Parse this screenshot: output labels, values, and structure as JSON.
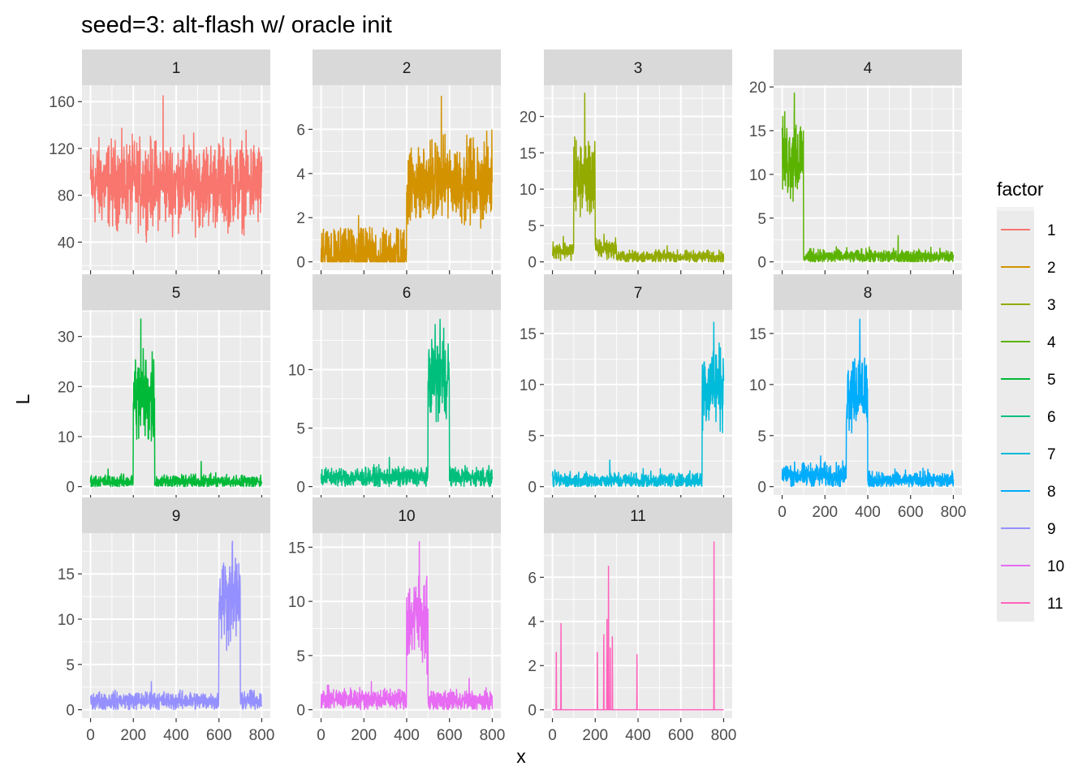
{
  "chart_data": {
    "type": "line",
    "title": "seed=3: alt-flash w/ oracle init",
    "xlabel": "x",
    "ylabel": "L",
    "grid": true,
    "facet_layout": "4 columns x 3 rows, free y scales, shared x scale",
    "legend": {
      "title": "factor",
      "position": "right",
      "labels": [
        "1",
        "2",
        "3",
        "4",
        "5",
        "6",
        "7",
        "8",
        "9",
        "10",
        "11"
      ]
    },
    "x_ticks": [
      0,
      200,
      400,
      600,
      800
    ],
    "xlim": [
      -40,
      840
    ],
    "panels": [
      {
        "strip": "1",
        "color": "#F8766D",
        "ylim": [
          16,
          174
        ],
        "y_ticks": [
          40,
          80,
          120,
          160
        ],
        "segments": [
          {
            "x0": 0,
            "x1": 800,
            "base": 90,
            "noise": 22,
            "max": 165
          }
        ]
      },
      {
        "strip": "2",
        "color": "#D39200",
        "ylim": [
          -0.38,
          8.0
        ],
        "y_ticks": [
          0,
          2,
          4,
          6
        ],
        "segments": [
          {
            "x0": 0,
            "x1": 400,
            "base": 0.3,
            "noise": 0.7,
            "spiky": true,
            "max": 2.1
          },
          {
            "x0": 400,
            "x1": 800,
            "base": 3.6,
            "noise": 1.1,
            "max": 7.5
          }
        ]
      },
      {
        "strip": "3",
        "color": "#93AA00",
        "ylim": [
          -1.15,
          24.3
        ],
        "y_ticks": [
          0,
          5,
          10,
          15,
          20
        ],
        "segments": [
          {
            "x0": 0,
            "x1": 100,
            "base": 1.6,
            "noise": 0.7,
            "max": 3.5
          },
          {
            "x0": 100,
            "x1": 200,
            "base": 11.5,
            "noise": 3.3,
            "max": 23.2
          },
          {
            "x0": 200,
            "x1": 300,
            "base": 1.8,
            "noise": 0.8,
            "max": 3.8
          },
          {
            "x0": 300,
            "x1": 800,
            "base": 0.7,
            "noise": 0.5,
            "max": 2.2
          }
        ]
      },
      {
        "strip": "4",
        "color": "#5BB300",
        "ylim": [
          -0.96,
          20.2
        ],
        "y_ticks": [
          0,
          5,
          10,
          15,
          20
        ],
        "segments": [
          {
            "x0": 0,
            "x1": 100,
            "base": 12,
            "noise": 3,
            "max": 19.3
          },
          {
            "x0": 100,
            "x1": 800,
            "base": 0.6,
            "noise": 0.5,
            "max": 3.0
          }
        ]
      },
      {
        "strip": "5",
        "color": "#00B937",
        "ylim": [
          -1.68,
          35.3
        ],
        "y_ticks": [
          0,
          10,
          20,
          30
        ],
        "segments": [
          {
            "x0": 0,
            "x1": 200,
            "base": 1.0,
            "noise": 0.8,
            "max": 3.5
          },
          {
            "x0": 200,
            "x1": 300,
            "base": 18,
            "noise": 6,
            "max": 33.5
          },
          {
            "x0": 300,
            "x1": 800,
            "base": 1.0,
            "noise": 0.8,
            "max": 5.0
          }
        ]
      },
      {
        "strip": "6",
        "color": "#00BF7D",
        "ylim": [
          -0.72,
          15.1
        ],
        "y_ticks": [
          0,
          5,
          10
        ],
        "segments": [
          {
            "x0": 0,
            "x1": 500,
            "base": 0.8,
            "noise": 0.5,
            "max": 2.5
          },
          {
            "x0": 500,
            "x1": 600,
            "base": 9.5,
            "noise": 2.2,
            "max": 14.3
          },
          {
            "x0": 600,
            "x1": 800,
            "base": 0.8,
            "noise": 0.5,
            "max": 1.8
          }
        ]
      },
      {
        "strip": "7",
        "color": "#00BBDA",
        "ylim": [
          -0.82,
          17.3
        ],
        "y_ticks": [
          0,
          5,
          10,
          15
        ],
        "segments": [
          {
            "x0": 0,
            "x1": 700,
            "base": 0.6,
            "noise": 0.5,
            "max": 2.6
          },
          {
            "x0": 700,
            "x1": 800,
            "base": 10,
            "noise": 2.5,
            "max": 16.1
          }
        ]
      },
      {
        "strip": "8",
        "color": "#00ACFC",
        "ylim": [
          -0.82,
          17.3
        ],
        "y_ticks": [
          0,
          5,
          10,
          15
        ],
        "segments": [
          {
            "x0": 0,
            "x1": 300,
            "base": 1.1,
            "noise": 0.7,
            "max": 3.0
          },
          {
            "x0": 300,
            "x1": 400,
            "base": 9.5,
            "noise": 2.5,
            "max": 16.4
          },
          {
            "x0": 400,
            "x1": 800,
            "base": 0.6,
            "noise": 0.5,
            "max": 1.8
          }
        ]
      },
      {
        "strip": "9",
        "color": "#9590FF",
        "ylim": [
          -0.93,
          19.5
        ],
        "y_ticks": [
          0,
          5,
          10,
          15
        ],
        "segments": [
          {
            "x0": 0,
            "x1": 600,
            "base": 1.0,
            "noise": 0.6,
            "max": 3.1
          },
          {
            "x0": 600,
            "x1": 700,
            "base": 12.5,
            "noise": 3,
            "max": 18.6
          },
          {
            "x0": 700,
            "x1": 800,
            "base": 1.0,
            "noise": 0.6,
            "max": 2.2
          }
        ]
      },
      {
        "strip": "10",
        "color": "#E76BF3",
        "ylim": [
          -0.78,
          16.3
        ],
        "y_ticks": [
          0,
          5,
          10,
          15
        ],
        "segments": [
          {
            "x0": 0,
            "x1": 400,
            "base": 1.0,
            "noise": 0.6,
            "max": 2.6
          },
          {
            "x0": 400,
            "x1": 500,
            "base": 8.5,
            "noise": 2.5,
            "max": 15.5
          },
          {
            "x0": 500,
            "x1": 800,
            "base": 0.8,
            "noise": 0.6,
            "max": 2.9
          }
        ]
      },
      {
        "strip": "11",
        "color": "#FF62BC",
        "ylim": [
          -0.38,
          8.0
        ],
        "y_ticks": [
          0,
          2,
          4,
          6
        ],
        "segments": [
          {
            "x0": 0,
            "x1": 800,
            "base": 0,
            "noise": 0,
            "max": 7.6
          }
        ],
        "spikes": [
          [
            18,
            2.6
          ],
          [
            40,
            3.9
          ],
          [
            210,
            2.6
          ],
          [
            240,
            3.4
          ],
          [
            255,
            4.1
          ],
          [
            262,
            6.5
          ],
          [
            270,
            2.8
          ],
          [
            280,
            3.3
          ],
          [
            395,
            2.5
          ],
          [
            755,
            7.6
          ]
        ]
      }
    ]
  }
}
